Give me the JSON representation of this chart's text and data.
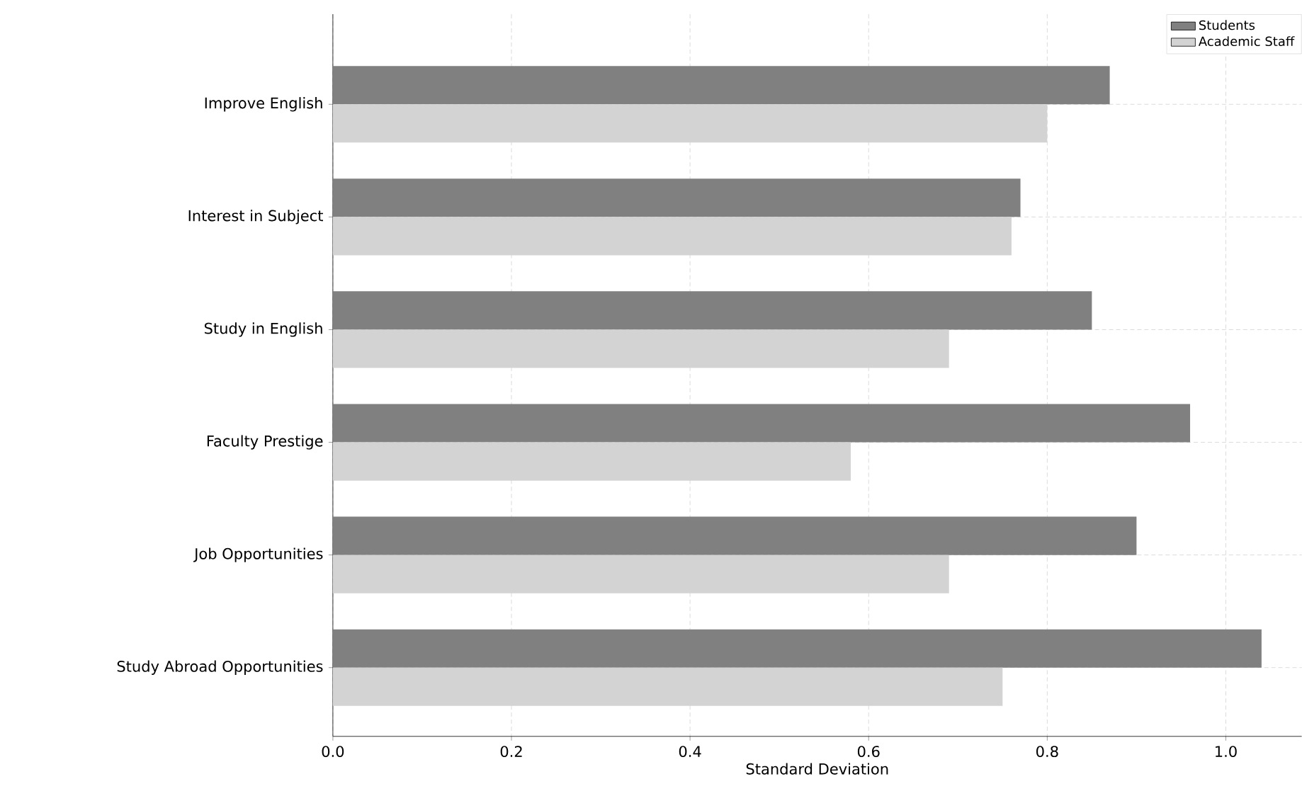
{
  "chart_data": {
    "type": "bar",
    "orientation": "horizontal",
    "xlabel": "Standard Deviation",
    "categories": [
      "Improve English",
      "Interest in Subject",
      "Study in English",
      "Faculty Prestige",
      "Job Opportunities",
      "Study Abroad Opportunities"
    ],
    "series": [
      {
        "name": "Students",
        "color": "#808080",
        "values": [
          0.87,
          0.77,
          0.85,
          0.96,
          0.9,
          1.04
        ]
      },
      {
        "name": "Academic Staff",
        "color": "#d3d3d3",
        "values": [
          0.8,
          0.76,
          0.69,
          0.58,
          0.69,
          0.75
        ]
      }
    ],
    "xlim": [
      0,
      1.085
    ],
    "xticks": [
      {
        "value": 0,
        "label": "0.0"
      },
      0.2,
      0.4,
      0.6,
      0.8,
      {
        "value": 1,
        "label": "1.0"
      }
    ],
    "grid": true,
    "legend": "top right"
  }
}
